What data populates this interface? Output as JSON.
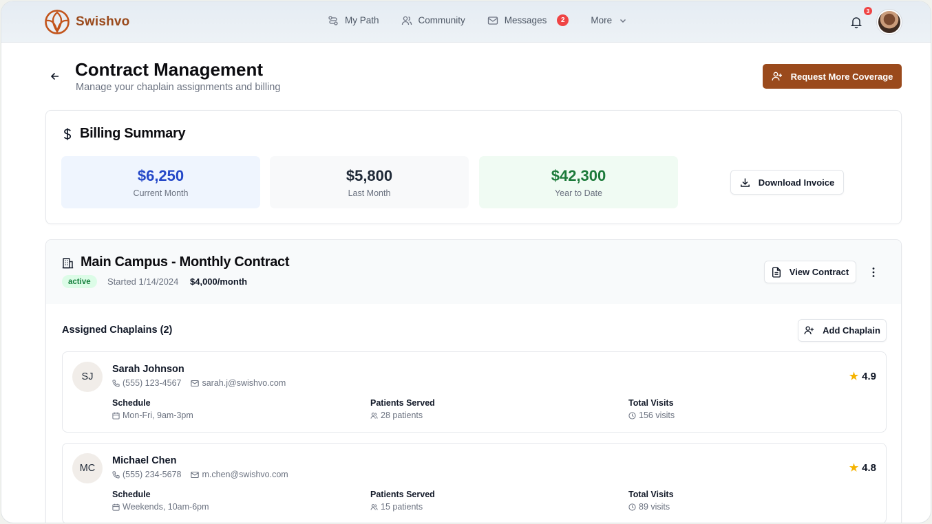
{
  "app": {
    "name": "Swishvo",
    "brand_color": "#9a4a1c"
  },
  "nav": {
    "items": [
      {
        "label": "My Path",
        "icon": "path-icon"
      },
      {
        "label": "Community",
        "icon": "users-icon"
      },
      {
        "label": "Messages",
        "icon": "mail-icon",
        "badge": "2"
      },
      {
        "label": "More",
        "icon": "chevron-down-icon"
      }
    ],
    "notifications_count": "3"
  },
  "page": {
    "title": "Contract Management",
    "subtitle": "Manage your chaplain assignments and billing",
    "primary_action": "Request More Coverage"
  },
  "billing": {
    "title": "Billing Summary",
    "stats": [
      {
        "value": "$6,250",
        "label": "Current Month",
        "color": "#2448c8",
        "bg": "#eff5fe"
      },
      {
        "value": "$5,800",
        "label": "Last Month",
        "color": "#1f2937",
        "bg": "#f8f9fa"
      },
      {
        "value": "$42,300",
        "label": "Year to Date",
        "color": "#1c7a3a",
        "bg": "#f0fbf3"
      }
    ],
    "download_label": "Download Invoice"
  },
  "contract": {
    "title": "Main Campus - Monthly Contract",
    "status": "active",
    "started": "Started 1/14/2024",
    "rate": "$4,000/month",
    "view_label": "View Contract",
    "chaplains_label": "Assigned Chaplains (2)",
    "add_label": "Add Chaplain",
    "chaplains": [
      {
        "initials": "SJ",
        "name": "Sarah Johnson",
        "phone": "(555) 123-4567",
        "email": "sarah.j@swishvo.com",
        "rating": "4.9",
        "schedule_label": "Schedule",
        "schedule": "Mon-Fri, 9am-3pm",
        "patients_label": "Patients Served",
        "patients": "28 patients",
        "visits_label": "Total Visits",
        "visits": "156 visits"
      },
      {
        "initials": "MC",
        "name": "Michael Chen",
        "phone": "(555) 234-5678",
        "email": "m.chen@swishvo.com",
        "rating": "4.8",
        "schedule_label": "Schedule",
        "schedule": "Weekends, 10am-6pm",
        "patients_label": "Patients Served",
        "patients": "15 patients",
        "visits_label": "Total Visits",
        "visits": "89 visits"
      }
    ]
  }
}
